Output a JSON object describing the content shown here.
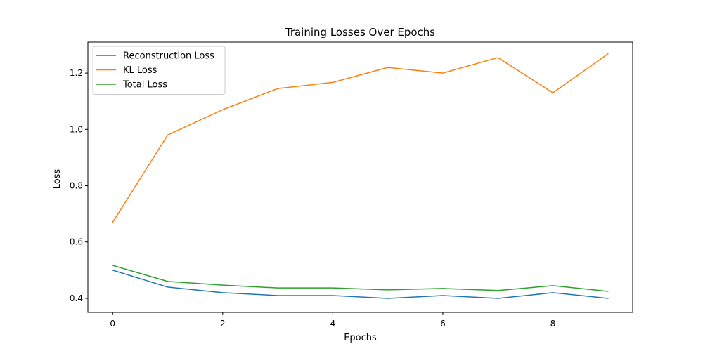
{
  "chart_data": {
    "type": "line",
    "title": "Training Losses Over Epochs",
    "xlabel": "Epochs",
    "ylabel": "Loss",
    "x": [
      0,
      1,
      2,
      3,
      4,
      5,
      6,
      7,
      8,
      9
    ],
    "xlim": [
      -0.45,
      9.45
    ],
    "ylim": [
      0.35,
      1.31
    ],
    "xticks": [
      0,
      2,
      4,
      6,
      8
    ],
    "yticks": [
      0.4,
      0.6,
      0.8,
      1.0,
      1.2
    ],
    "xtick_labels": [
      "0",
      "2",
      "4",
      "6",
      "8"
    ],
    "ytick_labels": [
      "0.4",
      "0.6",
      "0.8",
      "1.0",
      "1.2"
    ],
    "grid": false,
    "legend_position": "top-left",
    "series": [
      {
        "name": "Reconstruction Loss",
        "color": "#1f77b4",
        "values": [
          0.5,
          0.44,
          0.42,
          0.41,
          0.41,
          0.4,
          0.41,
          0.4,
          0.42,
          0.4
        ]
      },
      {
        "name": "KL Loss",
        "color": "#ff7f0e",
        "values": [
          0.67,
          0.98,
          1.07,
          1.145,
          1.167,
          1.22,
          1.2,
          1.255,
          1.13,
          1.268
        ]
      },
      {
        "name": "Total Loss",
        "color": "#2ca02c",
        "values": [
          0.517,
          0.46,
          0.447,
          0.437,
          0.437,
          0.43,
          0.435,
          0.428,
          0.445,
          0.425
        ]
      }
    ]
  }
}
